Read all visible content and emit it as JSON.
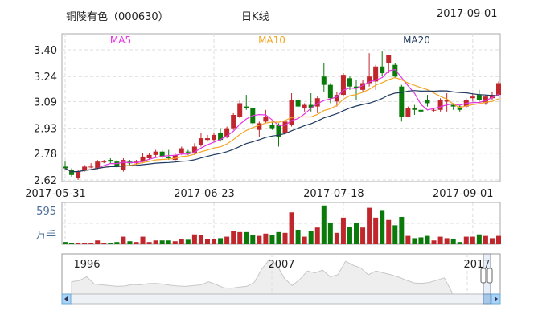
{
  "header": {
    "title": "铜陵有色（000630）",
    "period": "日K线",
    "date": "2017-09-01"
  },
  "colors": {
    "up": "#c0272d",
    "down": "#0a7a0a",
    "ma5": "#e535e0",
    "ma10": "#f5a623",
    "ma20": "#1f3a5f",
    "grid": "#dddddd"
  },
  "chart_data": {
    "type": "candlestick",
    "legend": [
      {
        "name": "MA5",
        "period": 5
      },
      {
        "name": "MA10",
        "period": 10
      },
      {
        "name": "MA20",
        "period": 20
      }
    ],
    "ylim": [
      2.62,
      3.4
    ],
    "yticks": [
      "3.40",
      "3.24",
      "3.09",
      "2.93",
      "2.78",
      "2.62"
    ],
    "xticks": [
      {
        "label": "2017-05-31",
        "index": 0
      },
      {
        "label": "2017-06-23",
        "index": 23
      },
      {
        "label": "2017-07-18",
        "index": 43
      },
      {
        "label": "2017-09-01",
        "index": 63
      }
    ],
    "ohlc": [
      [
        2.7,
        2.73,
        2.68,
        2.69
      ],
      [
        2.68,
        2.69,
        2.64,
        2.65
      ],
      [
        2.63,
        2.68,
        2.62,
        2.67
      ],
      [
        2.68,
        2.71,
        2.67,
        2.7
      ],
      [
        2.7,
        2.72,
        2.69,
        2.7
      ],
      [
        2.69,
        2.74,
        2.68,
        2.73
      ],
      [
        2.73,
        2.74,
        2.72,
        2.73
      ],
      [
        2.74,
        2.75,
        2.72,
        2.73
      ],
      [
        2.73,
        2.74,
        2.69,
        2.7
      ],
      [
        2.68,
        2.75,
        2.67,
        2.74
      ],
      [
        2.73,
        2.74,
        2.71,
        2.72
      ],
      [
        2.72,
        2.74,
        2.71,
        2.73
      ],
      [
        2.73,
        2.78,
        2.72,
        2.76
      ],
      [
        2.75,
        2.78,
        2.74,
        2.77
      ],
      [
        2.77,
        2.8,
        2.76,
        2.79
      ],
      [
        2.79,
        2.8,
        2.75,
        2.76
      ],
      [
        2.76,
        2.8,
        2.74,
        2.75
      ],
      [
        2.74,
        2.78,
        2.73,
        2.77
      ],
      [
        2.78,
        2.82,
        2.77,
        2.81
      ],
      [
        2.79,
        2.8,
        2.77,
        2.785
      ],
      [
        2.78,
        2.84,
        2.77,
        2.82
      ],
      [
        2.83,
        2.9,
        2.82,
        2.87
      ],
      [
        2.86,
        2.89,
        2.85,
        2.87
      ],
      [
        2.86,
        2.9,
        2.85,
        2.89
      ],
      [
        2.9,
        2.93,
        2.85,
        2.86
      ],
      [
        2.88,
        2.94,
        2.87,
        2.93
      ],
      [
        2.93,
        3.02,
        2.92,
        3.01
      ],
      [
        3.0,
        3.1,
        2.99,
        3.08
      ],
      [
        3.06,
        3.13,
        3.04,
        3.05
      ],
      [
        3.05,
        3.05,
        2.95,
        2.96
      ],
      [
        2.92,
        2.97,
        2.88,
        2.96
      ],
      [
        2.97,
        3.04,
        2.96,
        3.0
      ],
      [
        2.95,
        2.97,
        2.92,
        2.93
      ],
      [
        2.95,
        2.96,
        2.82,
        2.88
      ],
      [
        2.9,
        2.98,
        2.89,
        2.97
      ],
      [
        2.95,
        3.14,
        2.94,
        3.1
      ],
      [
        3.1,
        3.11,
        3.05,
        3.06
      ],
      [
        3.05,
        3.08,
        3.03,
        3.07
      ],
      [
        3.07,
        3.14,
        3.03,
        3.05
      ],
      [
        3.06,
        3.12,
        3.02,
        3.11
      ],
      [
        3.24,
        3.32,
        3.15,
        3.19
      ],
      [
        3.19,
        3.2,
        3.08,
        3.11
      ],
      [
        3.09,
        3.15,
        3.06,
        3.13
      ],
      [
        3.13,
        3.26,
        3.12,
        3.25
      ],
      [
        3.23,
        3.24,
        3.16,
        3.18
      ],
      [
        3.18,
        3.22,
        3.1,
        3.17
      ],
      [
        3.16,
        3.22,
        3.15,
        3.2
      ],
      [
        3.2,
        3.38,
        3.18,
        3.24
      ],
      [
        3.21,
        3.31,
        3.16,
        3.3
      ],
      [
        3.3,
        3.39,
        3.24,
        3.26
      ],
      [
        3.32,
        3.37,
        3.26,
        3.37
      ],
      [
        3.31,
        3.32,
        3.23,
        3.24
      ],
      [
        3.18,
        3.19,
        2.97,
        3.0
      ],
      [
        3.0,
        3.06,
        3.0,
        3.05
      ],
      [
        3.05,
        3.07,
        3.01,
        3.04
      ],
      [
        3.04,
        3.05,
        2.99,
        3.03
      ],
      [
        3.1,
        3.13,
        3.06,
        3.08
      ],
      [
        3.04,
        3.05,
        3.03,
        3.04
      ],
      [
        3.04,
        3.11,
        3.03,
        3.1
      ],
      [
        3.09,
        3.14,
        3.03,
        3.1
      ],
      [
        3.07,
        3.08,
        3.04,
        3.06
      ],
      [
        3.06,
        3.07,
        3.03,
        3.04
      ],
      [
        3.06,
        3.11,
        3.05,
        3.1
      ],
      [
        3.11,
        3.14,
        3.09,
        3.12
      ],
      [
        3.13,
        3.16,
        3.09,
        3.1
      ],
      [
        3.08,
        3.13,
        3.07,
        3.12
      ],
      [
        3.11,
        3.15,
        3.1,
        3.13
      ],
      [
        3.13,
        3.21,
        3.12,
        3.2
      ]
    ],
    "volume": {
      "unit": "万手",
      "label_value": "595",
      "values": [
        35,
        16,
        23,
        23,
        16,
        59,
        23,
        23,
        35,
        117,
        47,
        35,
        117,
        35,
        59,
        59,
        59,
        47,
        78,
        70,
        152,
        141,
        82,
        82,
        94,
        117,
        199,
        188,
        188,
        141,
        129,
        164,
        141,
        188,
        176,
        493,
        223,
        117,
        199,
        258,
        598,
        328,
        176,
        411,
        270,
        328,
        258,
        563,
        411,
        528,
        375,
        293,
        422,
        129,
        94,
        106,
        129,
        59,
        117,
        94,
        82,
        35,
        117,
        117,
        152,
        129,
        94,
        129
      ]
    },
    "navigator": {
      "labels": [
        "1996",
        "2007",
        "2017"
      ],
      "series": [
        3.2,
        3.5,
        4.5,
        2.6,
        2.4,
        2.2,
        2.0,
        2.1,
        2.5,
        2.4,
        2.7,
        2.8,
        2.6,
        2.3,
        2.1,
        2.0,
        2.2,
        2.4,
        3.2,
        2.5,
        1.6,
        1.5,
        1.8,
        2.0,
        3.0,
        6.5,
        9.0,
        7.5,
        4.0,
        2.2,
        3.8,
        6.0,
        5.5,
        6.2,
        4.5,
        5.0,
        8.5,
        7.5,
        6.8,
        5.0,
        6.0,
        5.5,
        5.0,
        4.4,
        3.6,
        2.9,
        2.8,
        3.0,
        3.6,
        4.2,
        0.5
      ]
    }
  }
}
